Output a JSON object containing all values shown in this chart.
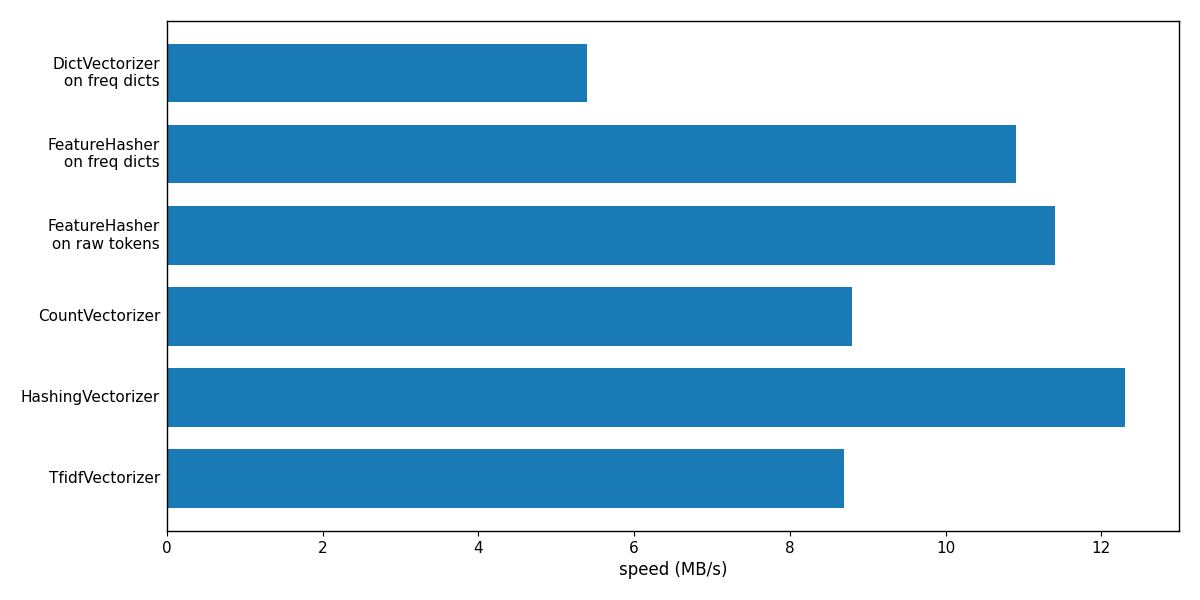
{
  "categories": [
    "TfidfVectorizer",
    "HashingVectorizer",
    "CountVectorizer",
    "FeatureHasher\n on raw tokens",
    "FeatureHasher\n on freq dicts",
    "DictVectorizer\n on freq dicts"
  ],
  "values": [
    8.7,
    12.3,
    8.8,
    11.4,
    10.9,
    5.4
  ],
  "bar_color": "#1a7ab5",
  "xlabel": "speed (MB/s)",
  "xlim": [
    0,
    13
  ],
  "xticks": [
    0,
    2,
    4,
    6,
    8,
    10,
    12
  ],
  "background_color": "#ffffff",
  "bar_height": 0.72,
  "figsize": [
    12,
    6
  ],
  "dpi": 100,
  "tick_fontsize": 11,
  "xlabel_fontsize": 12
}
